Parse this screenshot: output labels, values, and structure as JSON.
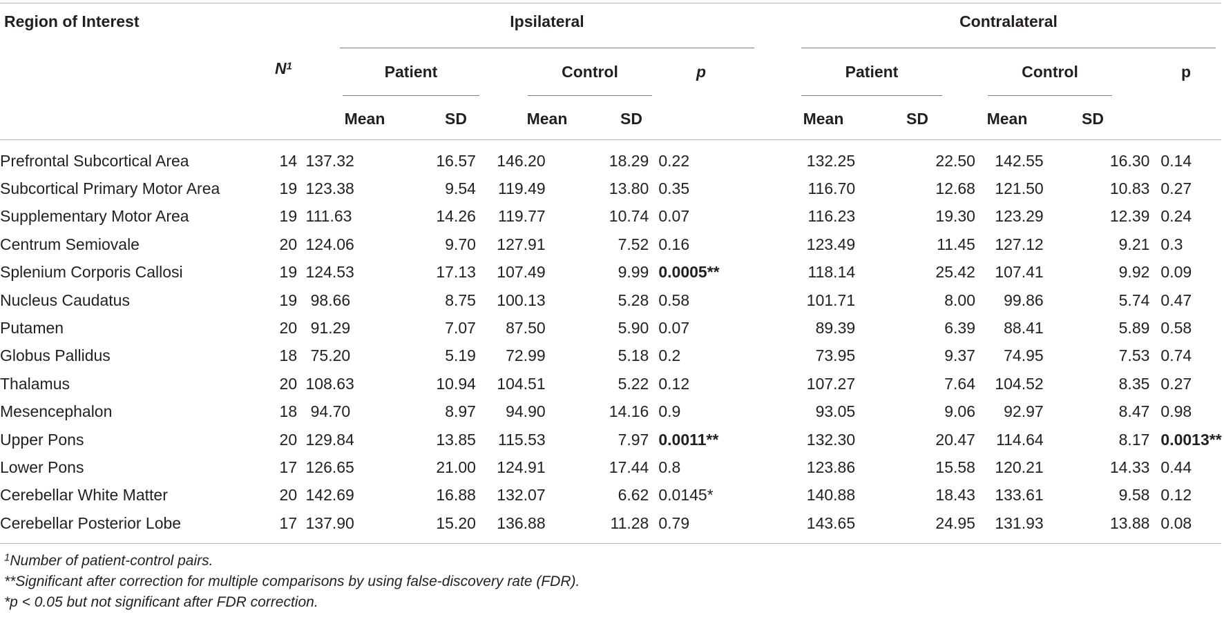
{
  "header": {
    "roi_label": "Region of Interest",
    "n_label": "N",
    "n_sup": "1",
    "ipsilateral": "Ipsilateral",
    "contralateral": "Contralateral",
    "patient": "Patient",
    "control": "Control",
    "p_ipsi": "p",
    "p_contra": "p",
    "mean": "Mean",
    "sd": "SD"
  },
  "rows": [
    {
      "region": "Prefrontal Subcortical Area",
      "n": "14",
      "ipsi_patient_mean": "137.32",
      "ipsi_patient_sd": "16.57",
      "ipsi_control_mean": "146.20",
      "ipsi_control_sd": "18.29",
      "ipsi_p": "0.22",
      "contra_patient_mean": "132.25",
      "contra_patient_sd": "22.50",
      "contra_control_mean": "142.55",
      "contra_control_sd": "16.30",
      "contra_p": "0.14"
    },
    {
      "region": "Subcortical Primary Motor Area",
      "n": "19",
      "ipsi_patient_mean": "123.38",
      "ipsi_patient_sd": "9.54",
      "ipsi_control_mean": "119.49",
      "ipsi_control_sd": "13.80",
      "ipsi_p": "0.35",
      "contra_patient_mean": "116.70",
      "contra_patient_sd": "12.68",
      "contra_control_mean": "121.50",
      "contra_control_sd": "10.83",
      "contra_p": "0.27"
    },
    {
      "region": "Supplementary Motor Area",
      "n": "19",
      "ipsi_patient_mean": "111.63",
      "ipsi_patient_sd": "14.26",
      "ipsi_control_mean": "119.77",
      "ipsi_control_sd": "10.74",
      "ipsi_p": "0.07",
      "contra_patient_mean": "116.23",
      "contra_patient_sd": "19.30",
      "contra_control_mean": "123.29",
      "contra_control_sd": "12.39",
      "contra_p": "0.24"
    },
    {
      "region": "Centrum Semiovale",
      "n": "20",
      "ipsi_patient_mean": "124.06",
      "ipsi_patient_sd": "9.70",
      "ipsi_control_mean": "127.91",
      "ipsi_control_sd": "7.52",
      "ipsi_p": "0.16",
      "contra_patient_mean": "123.49",
      "contra_patient_sd": "11.45",
      "contra_control_mean": "127.12",
      "contra_control_sd": "9.21",
      "contra_p": "0.3"
    },
    {
      "region": "Splenium Corporis Callosi",
      "n": "19",
      "ipsi_patient_mean": "124.53",
      "ipsi_patient_sd": "17.13",
      "ipsi_control_mean": "107.49",
      "ipsi_control_sd": "9.99",
      "ipsi_p": "0.0005**",
      "contra_patient_mean": "118.14",
      "contra_patient_sd": "25.42",
      "contra_control_mean": "107.41",
      "contra_control_sd": "9.92",
      "contra_p": "0.09"
    },
    {
      "region": "Nucleus Caudatus",
      "n": "19",
      "ipsi_patient_mean": "98.66",
      "ipsi_patient_sd": "8.75",
      "ipsi_control_mean": "100.13",
      "ipsi_control_sd": "5.28",
      "ipsi_p": "0.58",
      "contra_patient_mean": "101.71",
      "contra_patient_sd": "8.00",
      "contra_control_mean": "99.86",
      "contra_control_sd": "5.74",
      "contra_p": "0.47"
    },
    {
      "region": "Putamen",
      "n": "20",
      "ipsi_patient_mean": "91.29",
      "ipsi_patient_sd": "7.07",
      "ipsi_control_mean": "87.50",
      "ipsi_control_sd": "5.90",
      "ipsi_p": "0.07",
      "contra_patient_mean": "89.39",
      "contra_patient_sd": "6.39",
      "contra_control_mean": "88.41",
      "contra_control_sd": "5.89",
      "contra_p": "0.58"
    },
    {
      "region": "Globus Pallidus",
      "n": "18",
      "ipsi_patient_mean": "75.20",
      "ipsi_patient_sd": "5.19",
      "ipsi_control_mean": "72.99",
      "ipsi_control_sd": "5.18",
      "ipsi_p": "0.2",
      "contra_patient_mean": "73.95",
      "contra_patient_sd": "9.37",
      "contra_control_mean": "74.95",
      "contra_control_sd": "7.53",
      "contra_p": "0.74"
    },
    {
      "region": "Thalamus",
      "n": "20",
      "ipsi_patient_mean": "108.63",
      "ipsi_patient_sd": "10.94",
      "ipsi_control_mean": "104.51",
      "ipsi_control_sd": "5.22",
      "ipsi_p": "0.12",
      "contra_patient_mean": "107.27",
      "contra_patient_sd": "7.64",
      "contra_control_mean": "104.52",
      "contra_control_sd": "8.35",
      "contra_p": "0.27"
    },
    {
      "region": "Mesencephalon",
      "n": "18",
      "ipsi_patient_mean": "94.70",
      "ipsi_patient_sd": "8.97",
      "ipsi_control_mean": "94.90",
      "ipsi_control_sd": "14.16",
      "ipsi_p": "0.9",
      "contra_patient_mean": "93.05",
      "contra_patient_sd": "9.06",
      "contra_control_mean": "92.97",
      "contra_control_sd": "8.47",
      "contra_p": "0.98"
    },
    {
      "region": "Upper Pons",
      "n": "20",
      "ipsi_patient_mean": "129.84",
      "ipsi_patient_sd": "13.85",
      "ipsi_control_mean": "115.53",
      "ipsi_control_sd": "7.97",
      "ipsi_p": "0.0011**",
      "contra_patient_mean": "132.30",
      "contra_patient_sd": "20.47",
      "contra_control_mean": "114.64",
      "contra_control_sd": "8.17",
      "contra_p": "0.0013**"
    },
    {
      "region": "Lower Pons",
      "n": "17",
      "ipsi_patient_mean": "126.65",
      "ipsi_patient_sd": "21.00",
      "ipsi_control_mean": "124.91",
      "ipsi_control_sd": "17.44",
      "ipsi_p": "0.8",
      "contra_patient_mean": "123.86",
      "contra_patient_sd": "15.58",
      "contra_control_mean": "120.21",
      "contra_control_sd": "14.33",
      "contra_p": "0.44"
    },
    {
      "region": "Cerebellar White Matter",
      "n": "20",
      "ipsi_patient_mean": "142.69",
      "ipsi_patient_sd": "16.88",
      "ipsi_control_mean": "132.07",
      "ipsi_control_sd": "6.62",
      "ipsi_p": "0.0145*",
      "contra_patient_mean": "140.88",
      "contra_patient_sd": "18.43",
      "contra_control_mean": "133.61",
      "contra_control_sd": "9.58",
      "contra_p": "0.12"
    },
    {
      "region": "Cerebellar Posterior Lobe",
      "n": "17",
      "ipsi_patient_mean": "137.90",
      "ipsi_patient_sd": "15.20",
      "ipsi_control_mean": "136.88",
      "ipsi_control_sd": "11.28",
      "ipsi_p": "0.79",
      "contra_patient_mean": "143.65",
      "contra_patient_sd": "24.95",
      "contra_control_mean": "131.93",
      "contra_control_sd": "13.88",
      "contra_p": "0.08"
    }
  ],
  "footnotes": {
    "note1_sup": "1",
    "note1": "Number of patient-control pairs.",
    "note2": "**Significant after correction for multiple comparisons by using false-discovery rate (FDR).",
    "note3": "*p < 0.05 but not significant after FDR correction."
  }
}
